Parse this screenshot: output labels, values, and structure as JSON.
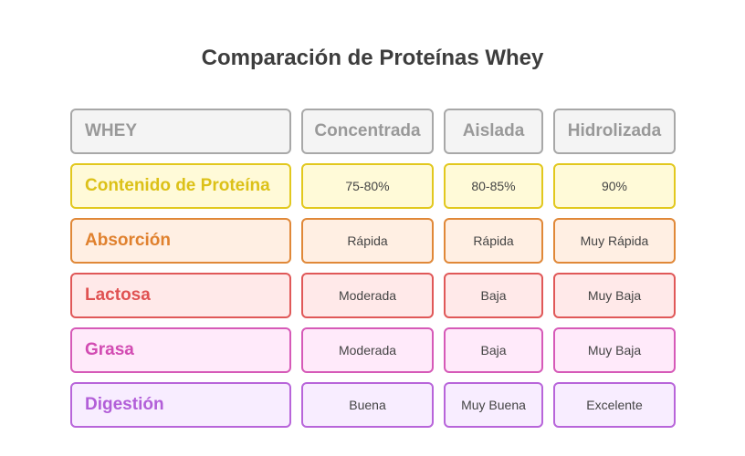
{
  "title": "Comparación de Proteínas Whey",
  "header": {
    "label": "WHEY",
    "columns": [
      "Concentrada",
      "Aislada",
      "Hidrolizada"
    ]
  },
  "rows": [
    {
      "label": "Contenido de Proteína",
      "values": [
        "75-80%",
        "80-85%",
        "90%"
      ],
      "colors": {
        "border": "#e2c81e",
        "fill": "#fffad8",
        "text": "#dcc118"
      }
    },
    {
      "label": "Absorción",
      "values": [
        "Rápida",
        "Rápida",
        "Muy Rápida"
      ],
      "colors": {
        "border": "#e08838",
        "fill": "#ffefe3",
        "text": "#e0812e"
      }
    },
    {
      "label": "Lactosa",
      "values": [
        "Moderada",
        "Baja",
        "Muy Baja"
      ],
      "colors": {
        "border": "#e05858",
        "fill": "#ffe9e9",
        "text": "#e05252"
      }
    },
    {
      "label": "Grasa",
      "values": [
        "Moderada",
        "Baja",
        "Muy Baja"
      ],
      "colors": {
        "border": "#d65ab8",
        "fill": "#ffeafa",
        "text": "#d24bb2"
      }
    },
    {
      "label": "Digestión",
      "values": [
        "Buena",
        "Muy Buena",
        "Excelente"
      ],
      "colors": {
        "border": "#b865da",
        "fill": "#f8edff",
        "text": "#b25ed8"
      }
    }
  ],
  "colors": {
    "header_border": "#a8a8a8",
    "header_fill": "#f4f4f4",
    "header_text": "#999999",
    "title_text": "#3d3d3d",
    "value_text": "#444444"
  }
}
